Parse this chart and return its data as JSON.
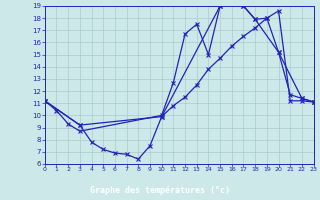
{
  "bg_color": "#cce8e8",
  "plot_bg": "#cce8e8",
  "bottom_bar_color": "#3333aa",
  "grid_color": "#aacccc",
  "line_color": "#2222bb",
  "xlabel": "Graphe des températures (°c)",
  "xlim": [
    0,
    23
  ],
  "ylim": [
    6,
    19
  ],
  "xticks": [
    0,
    1,
    2,
    3,
    4,
    5,
    6,
    7,
    8,
    9,
    10,
    11,
    12,
    13,
    14,
    15,
    16,
    17,
    18,
    19,
    20,
    21,
    22,
    23
  ],
  "yticks": [
    6,
    7,
    8,
    9,
    10,
    11,
    12,
    13,
    14,
    15,
    16,
    17,
    18,
    19
  ],
  "line1_x": [
    0,
    1,
    2,
    3,
    10,
    11,
    12,
    13,
    14,
    15,
    16,
    17,
    18,
    20,
    21,
    22,
    23
  ],
  "line1_y": [
    11.2,
    10.4,
    9.3,
    8.7,
    10.0,
    12.7,
    16.7,
    17.5,
    15.0,
    19.0,
    19.5,
    19.0,
    17.9,
    15.2,
    11.7,
    11.4,
    11.1
  ],
  "line2_x": [
    0,
    3,
    4,
    5,
    6,
    7,
    8,
    9,
    10,
    11,
    12,
    13,
    14,
    15,
    16,
    17,
    18,
    19,
    20,
    21,
    22,
    23
  ],
  "line2_y": [
    11.2,
    9.2,
    7.8,
    7.2,
    6.9,
    6.8,
    6.4,
    7.5,
    9.9,
    10.8,
    11.5,
    12.5,
    13.8,
    14.7,
    15.7,
    16.5,
    17.2,
    18.0,
    18.6,
    11.2,
    11.2,
    11.1
  ],
  "line3_x": [
    0,
    3,
    10,
    15,
    16,
    17,
    18,
    19,
    20,
    22,
    23
  ],
  "line3_y": [
    11.2,
    9.2,
    9.9,
    19.0,
    19.5,
    19.0,
    17.9,
    18.0,
    15.2,
    11.4,
    11.1
  ]
}
